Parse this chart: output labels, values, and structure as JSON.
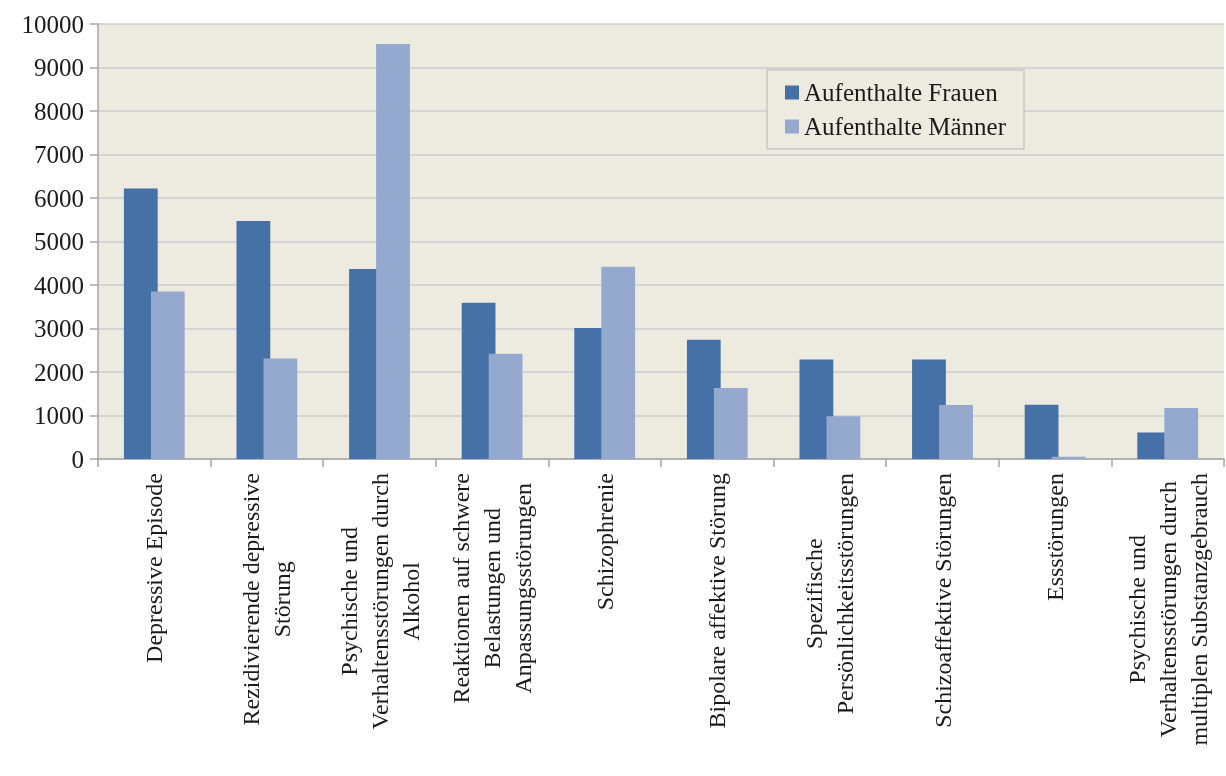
{
  "chart_data": {
    "type": "bar",
    "categories": [
      "Depressive Episode",
      "Rezidivierende depressive Störung",
      "Psychische und Verhaltensstörungen durch Alkohol",
      "Reaktionen auf schwere Belastungen und Anpassungsstörungen",
      "Schizophrenie",
      "Bipolare affektive Störung",
      "Spezifische Persönlichkeitsstörungen",
      "Schizoaffektive Störungen",
      "Essstörungen",
      "Psychische und Verhaltensstörungen durch multiplen Substanzgebrauch"
    ],
    "series": [
      {
        "name": "Aufenthalte Frauen",
        "color": "#4571a7",
        "values": [
          6220,
          5470,
          4370,
          3590,
          3010,
          2740,
          2290,
          2290,
          1250,
          610
        ]
      },
      {
        "name": "Aufenthalte Männer",
        "color": "#95a9cf",
        "values": [
          3850,
          2310,
          9540,
          2420,
          4420,
          1630,
          980,
          1240,
          50,
          1170
        ]
      }
    ],
    "ylim": [
      0,
      10000
    ],
    "yticks": [
      0,
      1000,
      2000,
      3000,
      4000,
      5000,
      6000,
      7000,
      8000,
      9000,
      10000
    ],
    "grid": "y",
    "legend": "top right"
  }
}
